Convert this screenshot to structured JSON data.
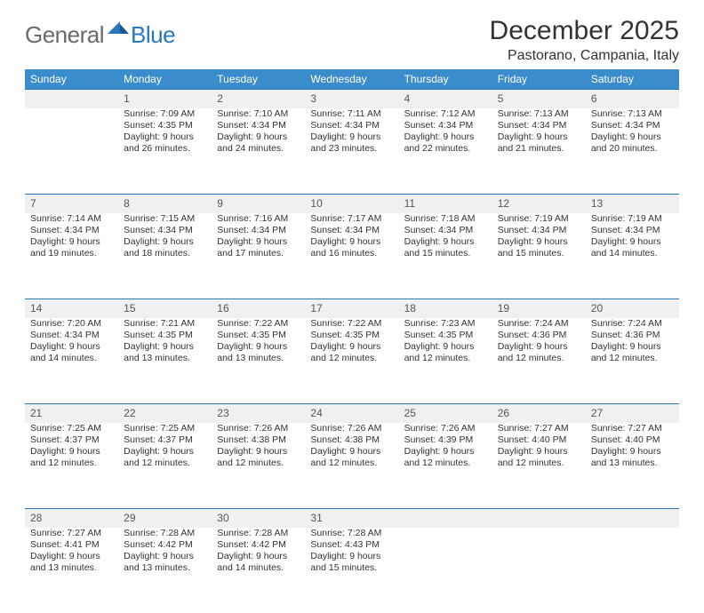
{
  "logo": {
    "general": "General",
    "blue": "Blue"
  },
  "title": "December 2025",
  "location": "Pastorano, Campania, Italy",
  "colors": {
    "header_bg": "#3b8ccb",
    "header_text": "#ffffff",
    "daynum_bg": "#eef0f1",
    "accent_border": "#2a76bd",
    "body_text": "#333333",
    "logo_gray": "#6a6a6a",
    "logo_blue": "#2a76bd"
  },
  "day_headers": [
    "Sunday",
    "Monday",
    "Tuesday",
    "Wednesday",
    "Thursday",
    "Friday",
    "Saturday"
  ],
  "weeks": [
    {
      "nums": [
        "",
        "1",
        "2",
        "3",
        "4",
        "5",
        "6"
      ],
      "cells": [
        [
          "",
          "",
          "",
          ""
        ],
        [
          "Sunrise: 7:09 AM",
          "Sunset: 4:35 PM",
          "Daylight: 9 hours",
          "and 26 minutes."
        ],
        [
          "Sunrise: 7:10 AM",
          "Sunset: 4:34 PM",
          "Daylight: 9 hours",
          "and 24 minutes."
        ],
        [
          "Sunrise: 7:11 AM",
          "Sunset: 4:34 PM",
          "Daylight: 9 hours",
          "and 23 minutes."
        ],
        [
          "Sunrise: 7:12 AM",
          "Sunset: 4:34 PM",
          "Daylight: 9 hours",
          "and 22 minutes."
        ],
        [
          "Sunrise: 7:13 AM",
          "Sunset: 4:34 PM",
          "Daylight: 9 hours",
          "and 21 minutes."
        ],
        [
          "Sunrise: 7:13 AM",
          "Sunset: 4:34 PM",
          "Daylight: 9 hours",
          "and 20 minutes."
        ]
      ]
    },
    {
      "nums": [
        "7",
        "8",
        "9",
        "10",
        "11",
        "12",
        "13"
      ],
      "cells": [
        [
          "Sunrise: 7:14 AM",
          "Sunset: 4:34 PM",
          "Daylight: 9 hours",
          "and 19 minutes."
        ],
        [
          "Sunrise: 7:15 AM",
          "Sunset: 4:34 PM",
          "Daylight: 9 hours",
          "and 18 minutes."
        ],
        [
          "Sunrise: 7:16 AM",
          "Sunset: 4:34 PM",
          "Daylight: 9 hours",
          "and 17 minutes."
        ],
        [
          "Sunrise: 7:17 AM",
          "Sunset: 4:34 PM",
          "Daylight: 9 hours",
          "and 16 minutes."
        ],
        [
          "Sunrise: 7:18 AM",
          "Sunset: 4:34 PM",
          "Daylight: 9 hours",
          "and 15 minutes."
        ],
        [
          "Sunrise: 7:19 AM",
          "Sunset: 4:34 PM",
          "Daylight: 9 hours",
          "and 15 minutes."
        ],
        [
          "Sunrise: 7:19 AM",
          "Sunset: 4:34 PM",
          "Daylight: 9 hours",
          "and 14 minutes."
        ]
      ]
    },
    {
      "nums": [
        "14",
        "15",
        "16",
        "17",
        "18",
        "19",
        "20"
      ],
      "cells": [
        [
          "Sunrise: 7:20 AM",
          "Sunset: 4:34 PM",
          "Daylight: 9 hours",
          "and 14 minutes."
        ],
        [
          "Sunrise: 7:21 AM",
          "Sunset: 4:35 PM",
          "Daylight: 9 hours",
          "and 13 minutes."
        ],
        [
          "Sunrise: 7:22 AM",
          "Sunset: 4:35 PM",
          "Daylight: 9 hours",
          "and 13 minutes."
        ],
        [
          "Sunrise: 7:22 AM",
          "Sunset: 4:35 PM",
          "Daylight: 9 hours",
          "and 12 minutes."
        ],
        [
          "Sunrise: 7:23 AM",
          "Sunset: 4:35 PM",
          "Daylight: 9 hours",
          "and 12 minutes."
        ],
        [
          "Sunrise: 7:24 AM",
          "Sunset: 4:36 PM",
          "Daylight: 9 hours",
          "and 12 minutes."
        ],
        [
          "Sunrise: 7:24 AM",
          "Sunset: 4:36 PM",
          "Daylight: 9 hours",
          "and 12 minutes."
        ]
      ]
    },
    {
      "nums": [
        "21",
        "22",
        "23",
        "24",
        "25",
        "26",
        "27"
      ],
      "cells": [
        [
          "Sunrise: 7:25 AM",
          "Sunset: 4:37 PM",
          "Daylight: 9 hours",
          "and 12 minutes."
        ],
        [
          "Sunrise: 7:25 AM",
          "Sunset: 4:37 PM",
          "Daylight: 9 hours",
          "and 12 minutes."
        ],
        [
          "Sunrise: 7:26 AM",
          "Sunset: 4:38 PM",
          "Daylight: 9 hours",
          "and 12 minutes."
        ],
        [
          "Sunrise: 7:26 AM",
          "Sunset: 4:38 PM",
          "Daylight: 9 hours",
          "and 12 minutes."
        ],
        [
          "Sunrise: 7:26 AM",
          "Sunset: 4:39 PM",
          "Daylight: 9 hours",
          "and 12 minutes."
        ],
        [
          "Sunrise: 7:27 AM",
          "Sunset: 4:40 PM",
          "Daylight: 9 hours",
          "and 12 minutes."
        ],
        [
          "Sunrise: 7:27 AM",
          "Sunset: 4:40 PM",
          "Daylight: 9 hours",
          "and 13 minutes."
        ]
      ]
    },
    {
      "nums": [
        "28",
        "29",
        "30",
        "31",
        "",
        "",
        ""
      ],
      "cells": [
        [
          "Sunrise: 7:27 AM",
          "Sunset: 4:41 PM",
          "Daylight: 9 hours",
          "and 13 minutes."
        ],
        [
          "Sunrise: 7:28 AM",
          "Sunset: 4:42 PM",
          "Daylight: 9 hours",
          "and 13 minutes."
        ],
        [
          "Sunrise: 7:28 AM",
          "Sunset: 4:42 PM",
          "Daylight: 9 hours",
          "and 14 minutes."
        ],
        [
          "Sunrise: 7:28 AM",
          "Sunset: 4:43 PM",
          "Daylight: 9 hours",
          "and 15 minutes."
        ],
        [
          "",
          "",
          "",
          ""
        ],
        [
          "",
          "",
          "",
          ""
        ],
        [
          "",
          "",
          "",
          ""
        ]
      ]
    }
  ]
}
